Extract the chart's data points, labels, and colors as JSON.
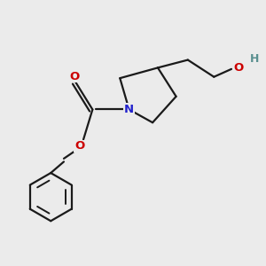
{
  "background_color": "#ebebeb",
  "bond_color": "#1a1a1a",
  "N_color": "#2222cc",
  "O_color": "#cc0000",
  "OH_O_color": "#cc0000",
  "H_color": "#5a9090",
  "figsize": [
    3.0,
    3.0
  ],
  "dpi": 100,
  "xlim": [
    0,
    10
  ],
  "ylim": [
    0,
    10
  ],
  "lw": 1.6,
  "lw_inner": 1.4
}
